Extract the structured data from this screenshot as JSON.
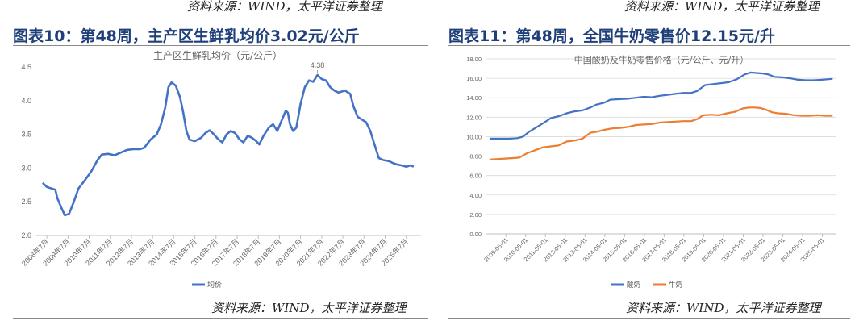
{
  "left_panel": {
    "top_source": "资料来源：WIND，太平洋证券整理",
    "title": "图表10：第48周，主产区生鲜乳均价3.02元/公斤",
    "bottom_source": "资料来源：WIND，太平洋证券整理"
  },
  "right_panel": {
    "top_source": "资料来源：WIND，太平洋证券整理",
    "title": "图表11：第48周，全国牛奶零售价12.15元/升",
    "bottom_source": "资料来源：WIND，太平洋证券整理"
  },
  "chart_data": [
    {
      "type": "line",
      "title": "主产区生鲜乳均价（元/公斤）",
      "xlabel": "",
      "ylabel": "",
      "x_ticks": [
        "2008年7月",
        "2009年7月",
        "2010年7月",
        "2011年7月",
        "2012年7月",
        "2013年7月",
        "2014年7月",
        "2015年7月",
        "2016年7月",
        "2017年7月",
        "2018年7月",
        "2019年7月",
        "2020年7月",
        "2021年7月",
        "2022年7月",
        "2023年7月",
        "2024年7月",
        "2025年7月"
      ],
      "ylim": [
        2.0,
        4.5
      ],
      "y_ticks": [
        "2.0",
        "2.5",
        "3.0",
        "3.5",
        "4.0",
        "4.5"
      ],
      "grid": false,
      "legend_position": "bottom",
      "annotations": [
        {
          "x": 2021.3,
          "y": 4.38,
          "text": "4.38"
        }
      ],
      "series": [
        {
          "name": "均价",
          "color": "#4472c4",
          "points": [
            [
              2008.3,
              2.78
            ],
            [
              2008.5,
              2.72
            ],
            [
              2008.9,
              2.68
            ],
            [
              2009.0,
              2.55
            ],
            [
              2009.2,
              2.4
            ],
            [
              2009.35,
              2.3
            ],
            [
              2009.55,
              2.32
            ],
            [
              2009.75,
              2.48
            ],
            [
              2010.0,
              2.7
            ],
            [
              2010.3,
              2.82
            ],
            [
              2010.6,
              2.95
            ],
            [
              2010.9,
              3.12
            ],
            [
              2011.1,
              3.2
            ],
            [
              2011.4,
              3.21
            ],
            [
              2011.7,
              3.19
            ],
            [
              2012.0,
              3.23
            ],
            [
              2012.3,
              3.27
            ],
            [
              2012.6,
              3.28
            ],
            [
              2012.9,
              3.28
            ],
            [
              2013.1,
              3.3
            ],
            [
              2013.4,
              3.42
            ],
            [
              2013.7,
              3.5
            ],
            [
              2013.9,
              3.65
            ],
            [
              2014.1,
              3.9
            ],
            [
              2014.25,
              4.2
            ],
            [
              2014.4,
              4.27
            ],
            [
              2014.6,
              4.22
            ],
            [
              2014.8,
              4.05
            ],
            [
              2014.95,
              3.82
            ],
            [
              2015.1,
              3.55
            ],
            [
              2015.25,
              3.42
            ],
            [
              2015.5,
              3.4
            ],
            [
              2015.8,
              3.45
            ],
            [
              2016.0,
              3.52
            ],
            [
              2016.2,
              3.56
            ],
            [
              2016.4,
              3.5
            ],
            [
              2016.6,
              3.43
            ],
            [
              2016.8,
              3.38
            ],
            [
              2017.0,
              3.5
            ],
            [
              2017.2,
              3.55
            ],
            [
              2017.4,
              3.52
            ],
            [
              2017.6,
              3.43
            ],
            [
              2017.8,
              3.38
            ],
            [
              2018.0,
              3.48
            ],
            [
              2018.2,
              3.45
            ],
            [
              2018.4,
              3.4
            ],
            [
              2018.55,
              3.35
            ],
            [
              2018.75,
              3.48
            ],
            [
              2019.0,
              3.6
            ],
            [
              2019.2,
              3.65
            ],
            [
              2019.4,
              3.55
            ],
            [
              2019.6,
              3.7
            ],
            [
              2019.8,
              3.85
            ],
            [
              2019.9,
              3.82
            ],
            [
              2020.0,
              3.65
            ],
            [
              2020.15,
              3.55
            ],
            [
              2020.3,
              3.6
            ],
            [
              2020.5,
              3.95
            ],
            [
              2020.7,
              4.2
            ],
            [
              2020.9,
              4.3
            ],
            [
              2021.1,
              4.28
            ],
            [
              2021.3,
              4.38
            ],
            [
              2021.5,
              4.32
            ],
            [
              2021.7,
              4.3
            ],
            [
              2021.9,
              4.2
            ],
            [
              2022.1,
              4.15
            ],
            [
              2022.3,
              4.12
            ],
            [
              2022.6,
              4.15
            ],
            [
              2022.85,
              4.1
            ],
            [
              2023.0,
              3.92
            ],
            [
              2023.2,
              3.76
            ],
            [
              2023.4,
              3.72
            ],
            [
              2023.6,
              3.68
            ],
            [
              2023.8,
              3.55
            ],
            [
              2024.0,
              3.35
            ],
            [
              2024.2,
              3.15
            ],
            [
              2024.4,
              3.12
            ],
            [
              2024.7,
              3.1
            ],
            [
              2024.9,
              3.07
            ],
            [
              2025.1,
              3.05
            ],
            [
              2025.3,
              3.04
            ],
            [
              2025.5,
              3.02
            ],
            [
              2025.7,
              3.04
            ],
            [
              2025.85,
              3.02
            ]
          ]
        }
      ]
    },
    {
      "type": "line",
      "title": "中国酸奶及牛奶零售价格（元/公斤、元/升）",
      "xlabel": "",
      "ylabel": "",
      "x_ticks": [
        "2009-05-01",
        "2010-05-01",
        "2011-05-01",
        "2012-05-01",
        "2013-05-01",
        "2014-05-01",
        "2015-05-01",
        "2016-05-01",
        "2017-05-01",
        "2018-05-01",
        "2019-05-01",
        "2020-05-01",
        "2021-05-01",
        "2022-05-01",
        "2023-05-01",
        "2024-05-01",
        "2025-05-01"
      ],
      "ylim": [
        0,
        18
      ],
      "y_ticks": [
        "0.00",
        "2.00",
        "4.00",
        "6.00",
        "8.00",
        "10.00",
        "12.00",
        "14.00",
        "16.00",
        "18.00"
      ],
      "grid": true,
      "legend_position": "bottom",
      "series": [
        {
          "name": "酸奶",
          "color": "#4472c4",
          "points": [
            [
              2008.5,
              9.8
            ],
            [
              2009.0,
              9.8
            ],
            [
              2009.5,
              9.8
            ],
            [
              2009.9,
              9.85
            ],
            [
              2010.2,
              10.0
            ],
            [
              2010.5,
              10.5
            ],
            [
              2010.9,
              11.0
            ],
            [
              2011.3,
              11.5
            ],
            [
              2011.6,
              11.9
            ],
            [
              2012.0,
              12.1
            ],
            [
              2012.4,
              12.4
            ],
            [
              2012.8,
              12.6
            ],
            [
              2013.2,
              12.7
            ],
            [
              2013.6,
              13.0
            ],
            [
              2013.9,
              13.3
            ],
            [
              2014.3,
              13.5
            ],
            [
              2014.6,
              13.8
            ],
            [
              2015.0,
              13.85
            ],
            [
              2015.5,
              13.9
            ],
            [
              2015.9,
              14.0
            ],
            [
              2016.3,
              14.1
            ],
            [
              2016.7,
              14.05
            ],
            [
              2017.1,
              14.2
            ],
            [
              2017.5,
              14.3
            ],
            [
              2017.9,
              14.4
            ],
            [
              2018.3,
              14.5
            ],
            [
              2018.7,
              14.5
            ],
            [
              2019.0,
              14.7
            ],
            [
              2019.4,
              15.3
            ],
            [
              2019.8,
              15.4
            ],
            [
              2020.2,
              15.5
            ],
            [
              2020.6,
              15.6
            ],
            [
              2021.0,
              15.9
            ],
            [
              2021.4,
              16.4
            ],
            [
              2021.7,
              16.6
            ],
            [
              2022.0,
              16.55
            ],
            [
              2022.3,
              16.5
            ],
            [
              2022.6,
              16.4
            ],
            [
              2022.9,
              16.15
            ],
            [
              2023.3,
              16.1
            ],
            [
              2023.7,
              16.0
            ],
            [
              2024.1,
              15.85
            ],
            [
              2024.5,
              15.8
            ],
            [
              2024.9,
              15.8
            ],
            [
              2025.3,
              15.85
            ],
            [
              2025.6,
              15.9
            ],
            [
              2025.85,
              15.95
            ]
          ]
        },
        {
          "name": "牛奶",
          "color": "#ed7d31",
          "points": [
            [
              2008.5,
              7.65
            ],
            [
              2008.9,
              7.7
            ],
            [
              2009.3,
              7.75
            ],
            [
              2009.7,
              7.8
            ],
            [
              2010.0,
              7.85
            ],
            [
              2010.4,
              8.3
            ],
            [
              2010.8,
              8.6
            ],
            [
              2011.2,
              8.9
            ],
            [
              2011.6,
              9.0
            ],
            [
              2012.0,
              9.1
            ],
            [
              2012.4,
              9.5
            ],
            [
              2012.8,
              9.6
            ],
            [
              2013.2,
              9.8
            ],
            [
              2013.6,
              10.4
            ],
            [
              2013.9,
              10.5
            ],
            [
              2014.3,
              10.7
            ],
            [
              2014.7,
              10.85
            ],
            [
              2015.1,
              10.9
            ],
            [
              2015.5,
              11.0
            ],
            [
              2015.9,
              11.2
            ],
            [
              2016.3,
              11.25
            ],
            [
              2016.7,
              11.3
            ],
            [
              2017.1,
              11.45
            ],
            [
              2017.5,
              11.5
            ],
            [
              2017.9,
              11.55
            ],
            [
              2018.3,
              11.6
            ],
            [
              2018.7,
              11.6
            ],
            [
              2019.0,
              11.8
            ],
            [
              2019.3,
              12.2
            ],
            [
              2019.7,
              12.25
            ],
            [
              2020.1,
              12.2
            ],
            [
              2020.5,
              12.4
            ],
            [
              2020.9,
              12.55
            ],
            [
              2021.3,
              12.9
            ],
            [
              2021.6,
              13.0
            ],
            [
              2021.9,
              13.0
            ],
            [
              2022.2,
              12.95
            ],
            [
              2022.5,
              12.75
            ],
            [
              2022.8,
              12.5
            ],
            [
              2023.1,
              12.4
            ],
            [
              2023.5,
              12.35
            ],
            [
              2023.9,
              12.2
            ],
            [
              2024.3,
              12.15
            ],
            [
              2024.7,
              12.15
            ],
            [
              2025.1,
              12.2
            ],
            [
              2025.5,
              12.15
            ],
            [
              2025.85,
              12.15
            ]
          ]
        }
      ]
    }
  ]
}
